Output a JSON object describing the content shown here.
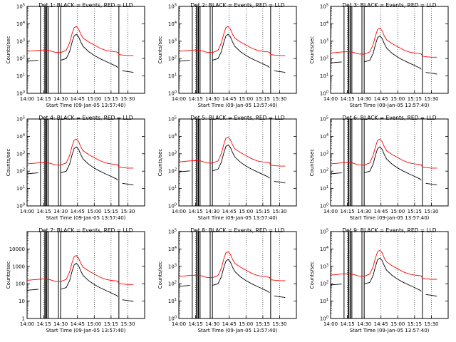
{
  "panel_titles": [
    "Det 1: BLACK = Events, RED = LLD",
    "Det 2: BLACK = Events, RED = LLD",
    "Det 3: BLACK = Events, RED = LLD",
    "Det 4: BLACK = Events, RED = LLD",
    "Det 5: BLACK = Events, RED = LLD",
    "Det 6: BLACK = Events, RED = LLD",
    "Det 7: BLACK = Events, RED = LLD",
    "Det 8: BLACK = Events, RED = LLD",
    "Det 9: BLACK = Events, RED = LLD"
  ],
  "xlabel": "Start Time (09-Jan-05 13:57:40)",
  "ylabel": "Counts/sec",
  "colors": {
    "events": "#000000",
    "lld": "#ff0000"
  },
  "chart_data": {
    "type": "line",
    "layout": "3x3 grid",
    "yscale": "log",
    "ylim": [
      1,
      100000
    ],
    "xlim_minutes": [
      0,
      105
    ],
    "x_tick_labels": [
      "14:00",
      "14:15",
      "14:30",
      "14:45",
      "15:00",
      "15:15",
      "15:30"
    ],
    "x_tick_minutes": [
      0,
      15,
      30,
      45,
      60,
      75,
      90
    ],
    "y_tick_labels_exponent": [
      "10^0",
      "10^1",
      "10^2",
      "10^3",
      "10^4",
      "10^5"
    ],
    "y_tick_labels_plain": [
      "1",
      "10",
      "100",
      "1000",
      "10000"
    ],
    "vertical_markers_minutes": [
      12,
      16,
      17.5,
      19,
      28,
      30,
      82
    ],
    "x": [
      0,
      5,
      10,
      15,
      20,
      25,
      30,
      35,
      38,
      40,
      42,
      44,
      46,
      48,
      50,
      55,
      60,
      65,
      70,
      75,
      80,
      81,
      82,
      85,
      90,
      95
    ],
    "series": [
      {
        "name": "BLACK = Events",
        "values": [
          70,
          75,
          80,
          null,
          null,
          null,
          80,
          100,
          250,
          800,
          2000,
          2500,
          1800,
          900,
          500,
          250,
          150,
          100,
          70,
          50,
          35,
          30,
          null,
          20,
          18,
          16
        ]
      },
      {
        "name": "RED = LLD",
        "values": [
          260,
          280,
          300,
          310,
          290,
          230,
          220,
          300,
          800,
          2500,
          6000,
          7000,
          5000,
          2500,
          1500,
          900,
          600,
          400,
          300,
          260,
          240,
          230,
          170,
          160,
          150,
          150
        ]
      }
    ],
    "panel_y_tick_style": [
      "exponent",
      "exponent",
      "exponent",
      "exponent",
      "exponent",
      "exponent",
      "plain",
      "exponent",
      "exponent"
    ],
    "panel_scale": [
      1,
      1,
      0.8,
      1,
      1.3,
      1,
      0.6,
      1,
      1.2
    ]
  }
}
